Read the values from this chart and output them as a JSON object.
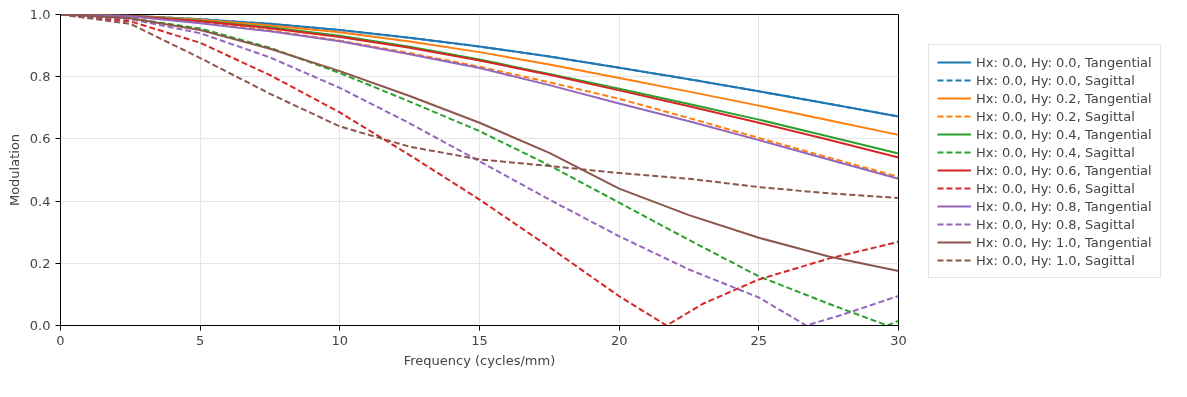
{
  "chart_data": {
    "type": "line",
    "xlabel": "Frequency (cycles/mm)",
    "ylabel": "Modulation",
    "x": [
      0,
      2.5,
      5,
      7.5,
      10,
      12.5,
      15,
      17.5,
      20,
      22.5,
      25,
      27.5,
      30
    ],
    "xlim": [
      0,
      30
    ],
    "ylim": [
      0,
      1
    ],
    "xticks": [
      0,
      5,
      10,
      15,
      20,
      25,
      30
    ],
    "yticks": [
      {
        "value": 0,
        "label": "0.0"
      },
      {
        "value": 0.2,
        "label": "0.2"
      },
      {
        "value": 0.4,
        "label": "0.4"
      },
      {
        "value": 0.6,
        "label": "0.6"
      },
      {
        "value": 0.8,
        "label": "0.8"
      },
      {
        "value": 1,
        "label": "1.0"
      }
    ],
    "grid": true,
    "legend": "right",
    "line_style": "solid",
    "series": [
      {
        "name": "Hx: 0.0, Hy: 0.0, Tangential",
        "color": "#1f77b4",
        "values": [
          1,
          0.996,
          0.985,
          0.97,
          0.95,
          0.925,
          0.897,
          0.865,
          0.829,
          0.792,
          0.753,
          0.713,
          0.672
        ]
      },
      {
        "name": "Hx: 0.0, Hy: 0.0, Sagittal",
        "color": "#1f77b4",
        "line_style": "dashed",
        "values": [
          1,
          0.996,
          0.985,
          0.97,
          0.95,
          0.925,
          0.897,
          0.865,
          0.829,
          0.792,
          0.753,
          0.713,
          0.672
        ]
      },
      {
        "name": "Hx: 0.0, Hy: 0.2, Tangential",
        "color": "#ff7f0e",
        "values": [
          1,
          0.996,
          0.983,
          0.965,
          0.943,
          0.913,
          0.879,
          0.839,
          0.796,
          0.752,
          0.707,
          0.66,
          0.613
        ]
      },
      {
        "name": "Hx: 0.0, Hy: 0.2, Sagittal",
        "color": "#ff7f0e",
        "line_style": "dashed",
        "values": [
          1,
          0.994,
          0.975,
          0.949,
          0.916,
          0.876,
          0.832,
          0.782,
          0.729,
          0.667,
          0.603,
          0.54,
          0.478
        ]
      },
      {
        "name": "Hx: 0.0, Hy: 0.4, Tangential",
        "color": "#2ca02c",
        "values": [
          1,
          0.995,
          0.98,
          0.959,
          0.932,
          0.896,
          0.855,
          0.809,
          0.761,
          0.712,
          0.662,
          0.608,
          0.553
        ]
      },
      {
        "name": "Hx: 0.0, Hy: 0.4, Sagittal",
        "color": "#2ca02c",
        "line_style": "dashed",
        "x": [
          0,
          2.5,
          5,
          7.5,
          10,
          12.5,
          15,
          17.5,
          20,
          22.5,
          25,
          27.5,
          29.6,
          30
        ],
        "values": [
          1,
          0.988,
          0.955,
          0.893,
          0.812,
          0.72,
          0.625,
          0.515,
          0.395,
          0.275,
          0.158,
          0.07,
          0.0,
          0.015
        ]
      },
      {
        "name": "Hx: 0.0, Hy: 0.6, Tangential",
        "color": "#d62728",
        "values": [
          1,
          0.995,
          0.978,
          0.956,
          0.928,
          0.893,
          0.852,
          0.806,
          0.756,
          0.705,
          0.652,
          0.597,
          0.54
        ]
      },
      {
        "name": "Hx: 0.0, Hy: 0.6, Sagittal",
        "color": "#d62728",
        "line_style": "dashed",
        "x": [
          0,
          2.5,
          5,
          7.5,
          10,
          12.5,
          15,
          17.5,
          20,
          21.7,
          23,
          25,
          27.5,
          30
        ],
        "values": [
          1,
          0.978,
          0.909,
          0.805,
          0.685,
          0.548,
          0.405,
          0.252,
          0.094,
          0.0,
          0.07,
          0.148,
          0.215,
          0.269
        ]
      },
      {
        "name": "Hx: 0.0, Hy: 0.8, Tangential",
        "color": "#9467bd",
        "values": [
          1,
          0.994,
          0.972,
          0.946,
          0.914,
          0.872,
          0.828,
          0.773,
          0.714,
          0.657,
          0.596,
          0.534,
          0.472
        ]
      },
      {
        "name": "Hx: 0.0, Hy: 0.8, Sagittal",
        "color": "#9467bd",
        "line_style": "dashed",
        "x": [
          0,
          2.5,
          5,
          7.5,
          10,
          12.5,
          15,
          17.5,
          20,
          22.5,
          25,
          26.7,
          28,
          30
        ],
        "values": [
          1,
          0.985,
          0.94,
          0.862,
          0.764,
          0.65,
          0.528,
          0.405,
          0.287,
          0.18,
          0.09,
          0.0,
          0.035,
          0.095
        ]
      },
      {
        "name": "Hx: 0.0, Hy: 1.0, Tangential",
        "color": "#8c564b",
        "values": [
          1,
          0.988,
          0.95,
          0.89,
          0.818,
          0.738,
          0.652,
          0.555,
          0.44,
          0.355,
          0.282,
          0.222,
          0.175
        ]
      },
      {
        "name": "Hx: 0.0, Hy: 1.0, Sagittal",
        "color": "#8c564b",
        "line_style": "dashed",
        "values": [
          1,
          0.97,
          0.86,
          0.745,
          0.64,
          0.575,
          0.534,
          0.513,
          0.49,
          0.472,
          0.445,
          0.425,
          0.41
        ]
      }
    ]
  }
}
